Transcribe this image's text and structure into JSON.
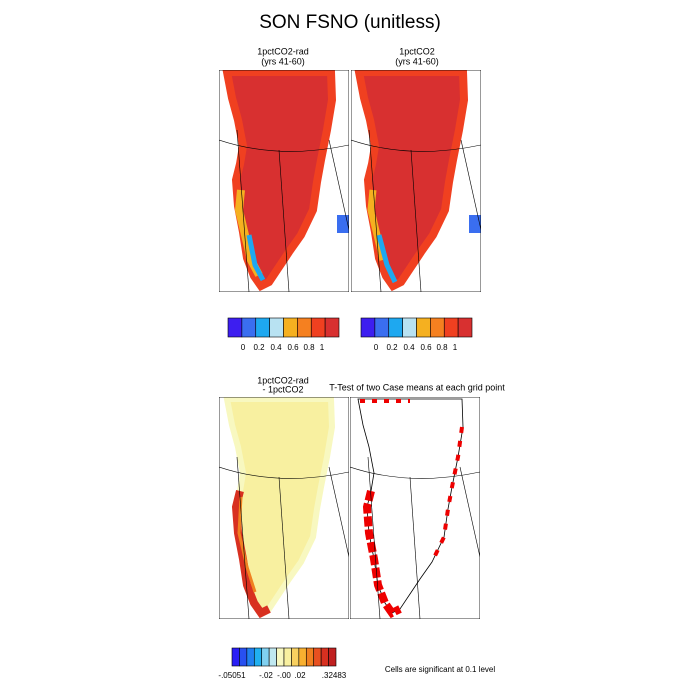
{
  "title": "SON FSNO (unitless)",
  "panels": [
    {
      "title": "1pctCO2-rad",
      "subtitle": "(yrs 41-60)"
    },
    {
      "title": "1pctCO2",
      "subtitle": "(yrs 41-60)"
    },
    {
      "title": "1pctCO2-rad",
      "subtitle": "- 1pctCO2"
    },
    {
      "title": "T-Test of two Case means at each grid point"
    }
  ],
  "colorbars": [
    {
      "colors": [
        "#3d1ef0",
        "#3a6ef0",
        "#1ea8f0",
        "#b8e2f2",
        "#f5b020",
        "#f58020",
        "#f04020",
        "#d83030"
      ],
      "labels": [
        "0",
        "0.2",
        "0.4",
        "0.6",
        "0.8",
        "1"
      ]
    },
    {
      "colors": [
        "#3d1ef0",
        "#3a6ef0",
        "#1ea8f0",
        "#b8e2f2",
        "#f5b020",
        "#f58020",
        "#f04020",
        "#d83030"
      ],
      "labels": [
        "0",
        "0.2",
        "0.4",
        "0.6",
        "0.8",
        "1"
      ]
    },
    {
      "colors": [
        "#2a1ef5",
        "#2850f0",
        "#2080f0",
        "#20b0f0",
        "#80d0f0",
        "#c0e8f0",
        "#f8f8c0",
        "#f8f0a0",
        "#f8d060",
        "#f8b030",
        "#f08020",
        "#e85020",
        "#d83020",
        "#c02020"
      ],
      "labels": [
        "-.05051",
        "-.02",
        "-.00",
        ".02",
        ".32483"
      ]
    }
  ],
  "note": "Cells are significant at 0.1 level"
}
